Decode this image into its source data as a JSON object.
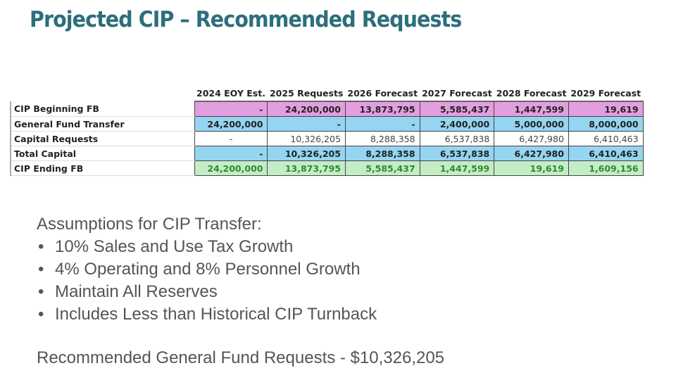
{
  "title": "Projected CIP – Recommended Requests",
  "table": {
    "columns": [
      "2024 EOY Est.",
      "2025 Requests",
      "2026 Forecast",
      "2027 Forecast",
      "2028 Forecast",
      "2029 Forecast"
    ],
    "rows": [
      {
        "label": "CIP Beginning FB",
        "values": [
          "-",
          "24,200,000",
          "13,873,795",
          "5,585,437",
          "1,447,599",
          "19,619"
        ],
        "color": "#e39ee0"
      },
      {
        "label": "General Fund Transfer",
        "values": [
          "24,200,000",
          "-",
          "-",
          "2,400,000",
          "5,000,000",
          "8,000,000"
        ],
        "color": "#95d5f1"
      },
      {
        "label": "Capital Requests",
        "values": [
          "-",
          "10,326,205",
          "8,288,358",
          "6,537,838",
          "6,427,980",
          "6,410,463"
        ],
        "color": "#ffffff"
      },
      {
        "label": "Total Capital",
        "values": [
          "-",
          "10,326,205",
          "8,288,358",
          "6,537,838",
          "6,427,980",
          "6,410,463"
        ],
        "color": "#95d5f1"
      },
      {
        "label": "CIP Ending FB",
        "values": [
          "24,200,000",
          "13,873,795",
          "5,585,437",
          "1,447,599",
          "19,619",
          "1,609,156"
        ],
        "color": "#c4edc6"
      }
    ]
  },
  "assumptions": {
    "heading": "Assumptions for CIP Transfer:",
    "items": [
      "10% Sales and Use Tax Growth",
      "4% Operating and 8% Personnel Growth",
      "Maintain All Reserves",
      "Includes Less than Historical CIP Turnback"
    ]
  },
  "recommendation": "Recommended General Fund Requests - $10,326,205"
}
